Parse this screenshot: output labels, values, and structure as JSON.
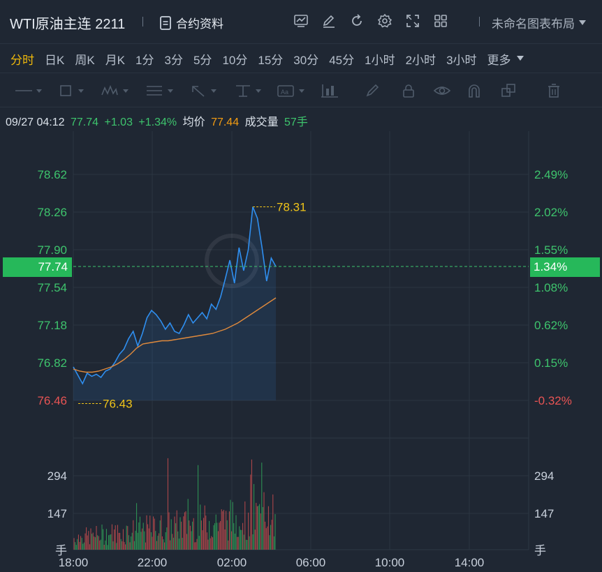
{
  "header": {
    "instrument": "WTI原油主连 2211",
    "contract_info_label": "合约资料",
    "layout_label": "未命名图表布局",
    "toolbar_icons": [
      "indicator-icon",
      "edit-icon",
      "refresh-icon",
      "settings-icon",
      "fullscreen-icon",
      "grid-icon"
    ]
  },
  "periods": {
    "items": [
      "分时",
      "日K",
      "周K",
      "月K",
      "1分",
      "3分",
      "5分",
      "10分",
      "15分",
      "30分",
      "45分",
      "1小时",
      "2小时",
      "3小时"
    ],
    "more_label": "更多",
    "active": "分时"
  },
  "drawing_tools": [
    "line-tool-icon",
    "rectangle-tool-icon",
    "wave-tool-icon",
    "fib-tool-icon",
    "arrow-tool-icon",
    "measure-tool-icon",
    "text-tool-icon",
    "bars-tool-icon",
    "brush-icon",
    "lock-icon",
    "eye-icon",
    "magnet-icon",
    "layers-icon",
    "trash-icon"
  ],
  "info": {
    "time": "09/27 04:12",
    "price": "77.74",
    "change": "+1.03",
    "change_pct": "+1.34%",
    "avg_label": "均价",
    "avg_price": "77.44",
    "volume_label": "成交量",
    "volume": "57手"
  },
  "colors": {
    "up": "#3ec46d",
    "down": "#e85454",
    "price_line": "#2f8ff0",
    "avg_line": "#e08a3c",
    "highlight": "#26b85a",
    "label_yellow": "#f0c419"
  },
  "chart_data": {
    "type": "line",
    "title": "",
    "price_ticks": [
      "78.62",
      "78.26",
      "77.90",
      "77.54",
      "77.18",
      "76.82",
      "76.46"
    ],
    "price_tick_values": [
      78.62,
      78.26,
      77.9,
      77.54,
      77.18,
      76.82,
      76.46
    ],
    "pct_ticks": [
      "2.49%",
      "2.02%",
      "1.55%",
      "1.08%",
      "0.62%",
      "0.15%",
      "-0.32%"
    ],
    "current_price": "77.74",
    "current_pct": "1.34%",
    "high_label": "78.31",
    "low_label": "76.43",
    "volume_ticks": [
      "294",
      "147"
    ],
    "volume_unit": "手",
    "time_ticks": [
      "18:00",
      "22:00",
      "02:00",
      "06:00",
      "10:00",
      "14:00"
    ],
    "ylim": [
      76.46,
      78.62
    ],
    "series": [
      {
        "values": [
          76.78,
          76.7,
          76.62,
          76.72,
          76.69,
          76.71,
          76.68,
          76.74,
          76.76,
          76.82,
          76.9,
          76.95,
          77.05,
          77.12,
          76.98,
          77.1,
          77.25,
          77.32,
          77.28,
          77.22,
          77.14,
          77.2,
          77.12,
          77.1,
          77.18,
          77.28,
          77.2,
          77.25,
          77.3,
          77.24,
          77.38,
          77.33,
          77.45,
          77.62,
          77.8,
          77.58,
          77.92,
          77.7,
          77.9,
          78.31,
          78.2,
          77.92,
          77.6,
          77.82,
          77.74
        ]
      },
      {
        "values": [
          76.76,
          76.74,
          76.73,
          76.73,
          76.74,
          76.76,
          76.78,
          76.81,
          76.85,
          76.9,
          76.96,
          77.0,
          77.01,
          77.02,
          77.03,
          77.03,
          77.04,
          77.05,
          77.06,
          77.07,
          77.08,
          77.09,
          77.1,
          77.12,
          77.14,
          77.17,
          77.2,
          77.24,
          77.28,
          77.32,
          77.36,
          77.4,
          77.44
        ]
      }
    ]
  }
}
